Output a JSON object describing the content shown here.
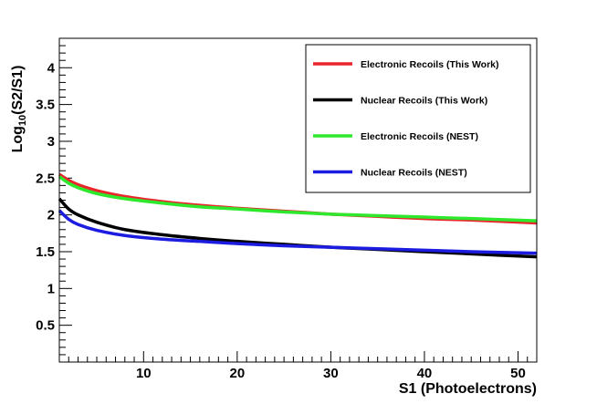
{
  "chart_data": {
    "type": "line",
    "xlabel": "S1 (Photoelectrons)",
    "ylabel_main": "Log",
    "ylabel_sub": "10",
    "ylabel_tail": "(S2/S1)",
    "xlim": [
      1,
      52
    ],
    "ylim": [
      0,
      4.4
    ],
    "x_ticks": [
      10,
      20,
      30,
      40,
      50
    ],
    "y_ticks": [
      0.5,
      1,
      1.5,
      2,
      2.5,
      3,
      3.5,
      4
    ],
    "x_tick_labels": [
      "10",
      "20",
      "30",
      "40",
      "50"
    ],
    "y_tick_labels": [
      "0.5",
      "1",
      "1.5",
      "2",
      "2.5",
      "3",
      "3.5",
      "4"
    ],
    "legend_position": "top-right",
    "series": [
      {
        "name": "Electronic Recoils (This Work)",
        "color": "#e8262b",
        "x": [
          1,
          2,
          3,
          5,
          8,
          12,
          16,
          20,
          25,
          30,
          35,
          40,
          45,
          52
        ],
        "y": [
          2.55,
          2.47,
          2.41,
          2.33,
          2.25,
          2.18,
          2.13,
          2.09,
          2.05,
          2.01,
          1.98,
          1.95,
          1.93,
          1.89
        ]
      },
      {
        "name": "Nuclear Recoils (This Work)",
        "color": "#000000",
        "x": [
          1,
          2,
          3,
          5,
          8,
          12,
          16,
          20,
          25,
          30,
          35,
          40,
          45,
          52
        ],
        "y": [
          2.22,
          2.08,
          2.0,
          1.9,
          1.8,
          1.73,
          1.68,
          1.64,
          1.6,
          1.56,
          1.53,
          1.5,
          1.47,
          1.43
        ]
      },
      {
        "name": "Electronic Recoils (NEST)",
        "color": "#2ee82e",
        "x": [
          1,
          2,
          3,
          5,
          8,
          12,
          16,
          20,
          25,
          30,
          35,
          40,
          45,
          52
        ],
        "y": [
          2.52,
          2.43,
          2.37,
          2.29,
          2.22,
          2.16,
          2.11,
          2.08,
          2.04,
          2.01,
          1.99,
          1.97,
          1.95,
          1.92
        ]
      },
      {
        "name": "Nuclear Recoils (NEST)",
        "color": "#1c1ce0",
        "x": [
          1,
          2,
          3,
          5,
          8,
          12,
          16,
          20,
          25,
          30,
          35,
          40,
          45,
          52
        ],
        "y": [
          2.06,
          1.94,
          1.87,
          1.79,
          1.72,
          1.67,
          1.64,
          1.61,
          1.58,
          1.56,
          1.54,
          1.52,
          1.5,
          1.48
        ]
      }
    ]
  }
}
